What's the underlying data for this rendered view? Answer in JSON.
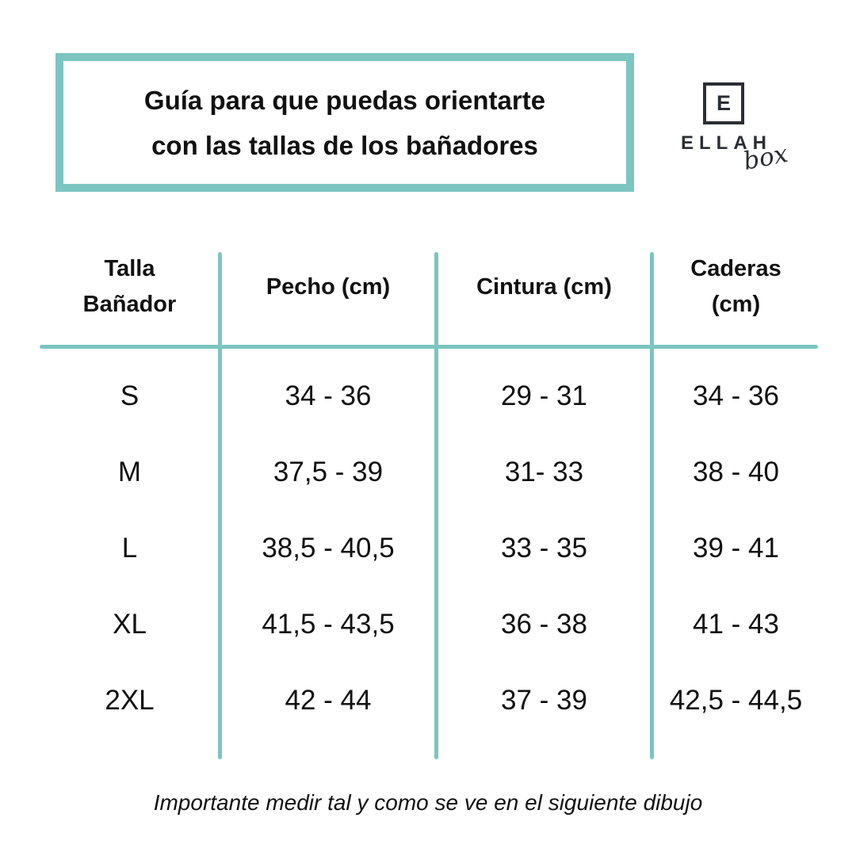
{
  "colors": {
    "teal_accent": "#7cc5c1",
    "text": "#111111",
    "logo_dark": "#2b2e33",
    "background": "#ffffff"
  },
  "title_box": {
    "line1": "Guía para que puedas orientarte",
    "line2": "con las tallas de los bañadores"
  },
  "logo": {
    "monogram": "E",
    "name": "ELLAH",
    "script": "box"
  },
  "table": {
    "headers": {
      "col1_line1": "Talla",
      "col1_line2": "Bañador",
      "col2": "Pecho (cm)",
      "col3": "Cintura (cm)",
      "col4_line1": "Caderas",
      "col4_line2": "(cm)"
    },
    "rows": [
      {
        "size": "S",
        "pecho": "34 - 36",
        "cintura": "29 - 31",
        "caderas": "34 - 36"
      },
      {
        "size": "M",
        "pecho": "37,5 - 39",
        "cintura": "31- 33",
        "caderas": "38 - 40"
      },
      {
        "size": "L",
        "pecho": "38,5 - 40,5",
        "cintura": "33 - 35",
        "caderas": "39 - 41"
      },
      {
        "size": "XL",
        "pecho": "41,5 - 43,5",
        "cintura": "36 - 38",
        "caderas": "41 - 43"
      },
      {
        "size": "2XL",
        "pecho": "42 - 44",
        "cintura": "37 - 39",
        "caderas": "42,5 - 44,5"
      }
    ]
  },
  "caption": "Importante medir tal y como se ve en el siguiente dibujo"
}
